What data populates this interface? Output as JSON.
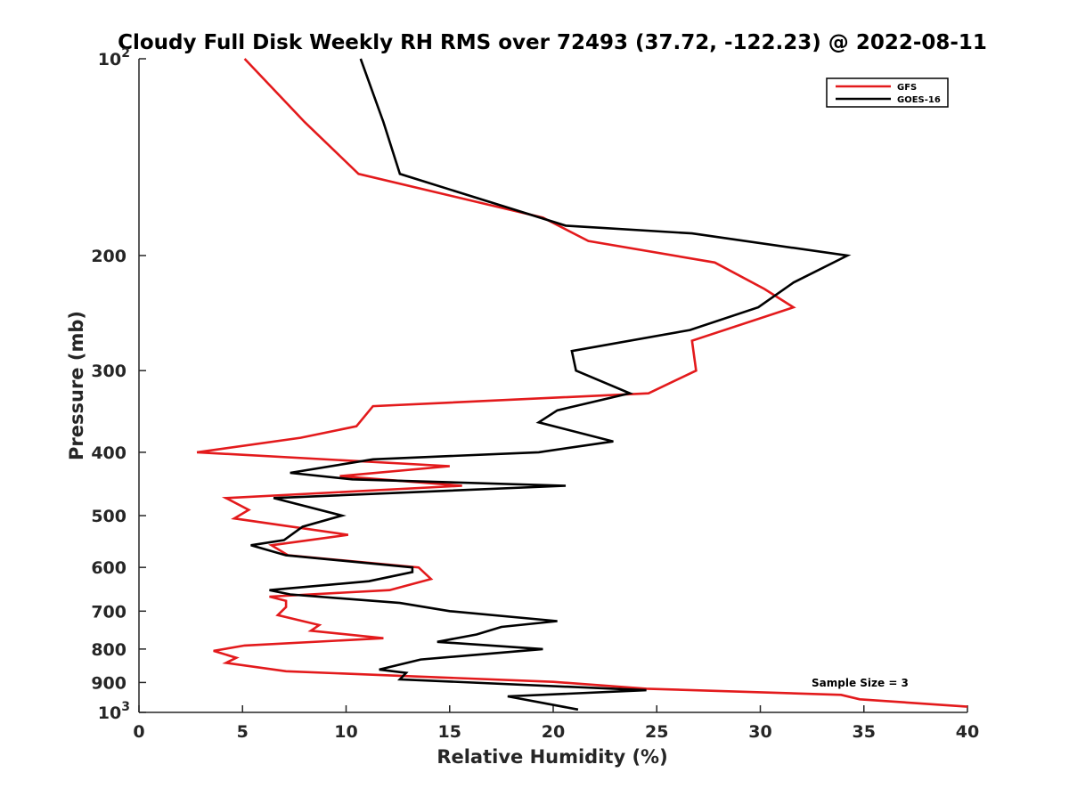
{
  "chart_data": {
    "type": "line",
    "title": "Cloudy Full Disk Weekly RH RMS over 72493 (37.72, -122.23) @ 2022-08-11",
    "xlabel": "Relative Humidity (%)",
    "ylabel": "Pressure (mb)",
    "xlim": [
      0,
      40
    ],
    "ylim": [
      100,
      1000
    ],
    "y_scale": "log",
    "y_reversed": true,
    "grid": false,
    "legend_position": "top-right",
    "x_ticks": [
      "0",
      "5",
      "10",
      "15",
      "20",
      "25",
      "30",
      "35",
      "40"
    ],
    "y_ticks": [
      {
        "value": 100,
        "base": "10",
        "exp": "2"
      },
      {
        "value": 200,
        "text": "200"
      },
      {
        "value": 300,
        "text": "300"
      },
      {
        "value": 400,
        "text": "400"
      },
      {
        "value": 500,
        "text": "500"
      },
      {
        "value": 600,
        "text": "600"
      },
      {
        "value": 700,
        "text": "700"
      },
      {
        "value": 800,
        "text": "800"
      },
      {
        "value": 900,
        "text": "900"
      },
      {
        "value": 1000,
        "base": "10",
        "exp": "3"
      }
    ],
    "annotation": "Sample Size = 3",
    "series": [
      {
        "name": "GFS",
        "color": "#e31a1c",
        "points": [
          [
            5.1,
            100
          ],
          [
            8.0,
            125
          ],
          [
            10.6,
            150
          ],
          [
            19.5,
            175
          ],
          [
            21.7,
            190
          ],
          [
            27.8,
            205
          ],
          [
            30.2,
            225
          ],
          [
            31.6,
            240
          ],
          [
            26.7,
            270
          ],
          [
            26.9,
            300
          ],
          [
            24.6,
            325
          ],
          [
            11.3,
            340
          ],
          [
            10.5,
            365
          ],
          [
            7.8,
            380
          ],
          [
            2.8,
            400
          ],
          [
            15.0,
            420
          ],
          [
            9.7,
            435
          ],
          [
            15.6,
            450
          ],
          [
            4.2,
            470
          ],
          [
            5.3,
            490
          ],
          [
            4.6,
            505
          ],
          [
            10.1,
            535
          ],
          [
            6.4,
            555
          ],
          [
            7.2,
            575
          ],
          [
            13.5,
            600
          ],
          [
            14.1,
            625
          ],
          [
            12.1,
            650
          ],
          [
            6.3,
            665
          ],
          [
            7.1,
            675
          ],
          [
            7.1,
            690
          ],
          [
            6.7,
            710
          ],
          [
            8.7,
            735
          ],
          [
            8.3,
            750
          ],
          [
            11.8,
            770
          ],
          [
            5.1,
            790
          ],
          [
            3.6,
            805
          ],
          [
            4.7,
            825
          ],
          [
            4.2,
            840
          ],
          [
            7.1,
            865
          ],
          [
            13.0,
            880
          ],
          [
            20.0,
            898
          ],
          [
            24.5,
            920
          ],
          [
            33.9,
            940
          ],
          [
            34.8,
            955
          ],
          [
            40.0,
            980
          ]
        ]
      },
      {
        "name": "GOES-16",
        "color": "#000000",
        "points": [
          [
            10.7,
            100
          ],
          [
            11.8,
            125
          ],
          [
            12.6,
            150
          ],
          [
            20.6,
            180
          ],
          [
            26.7,
            185
          ],
          [
            34.2,
            200
          ],
          [
            31.6,
            220
          ],
          [
            29.9,
            240
          ],
          [
            26.6,
            260
          ],
          [
            20.9,
            280
          ],
          [
            21.1,
            300
          ],
          [
            23.7,
            325
          ],
          [
            20.2,
            345
          ],
          [
            19.3,
            360
          ],
          [
            22.9,
            385
          ],
          [
            19.3,
            400
          ],
          [
            11.3,
            410
          ],
          [
            7.3,
            430
          ],
          [
            10.3,
            440
          ],
          [
            20.6,
            450
          ],
          [
            6.5,
            470
          ],
          [
            9.8,
            500
          ],
          [
            7.9,
            520
          ],
          [
            7.0,
            545
          ],
          [
            5.4,
            555
          ],
          [
            7.1,
            575
          ],
          [
            13.2,
            600
          ],
          [
            13.2,
            610
          ],
          [
            11.1,
            630
          ],
          [
            6.3,
            650
          ],
          [
            7.3,
            660
          ],
          [
            12.6,
            680
          ],
          [
            15.0,
            700
          ],
          [
            20.2,
            725
          ],
          [
            17.5,
            740
          ],
          [
            16.3,
            760
          ],
          [
            14.4,
            780
          ],
          [
            19.5,
            800
          ],
          [
            13.6,
            830
          ],
          [
            11.6,
            860
          ],
          [
            12.9,
            870
          ],
          [
            12.6,
            890
          ],
          [
            24.5,
            925
          ],
          [
            17.8,
            945
          ],
          [
            21.2,
            990
          ]
        ]
      }
    ]
  }
}
